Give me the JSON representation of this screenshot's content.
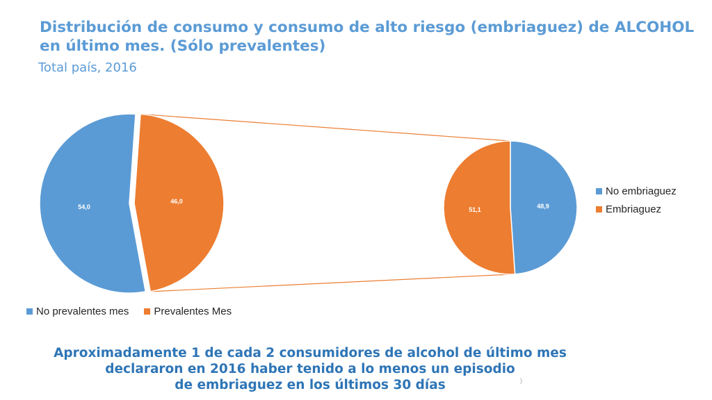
{
  "header": {
    "title_line1": "Distribución de consumo y consumo de alto riesgo (embriaguez) de ALCOHOL",
    "title_line2": "en último mes. (Sólo prevalentes)",
    "subtitle": "Total país, 2016"
  },
  "colors": {
    "blue": "#5B9BD5",
    "orange": "#ED7D31",
    "title": "#5B9BD5",
    "conclusion": "#2E75B6"
  },
  "chart_data": [
    {
      "type": "pie",
      "categories": [
        "No prevalentes mes",
        "Prevalentes Mes"
      ],
      "values": [
        54.0,
        46.0
      ],
      "labels": [
        "54,0",
        "46,0"
      ],
      "legend": "bottom"
    },
    {
      "type": "pie",
      "categories": [
        "No embriaguez",
        "Embriaguez"
      ],
      "values": [
        48.9,
        51.1
      ],
      "labels": [
        "48,9",
        "51,1"
      ],
      "legend": "right"
    }
  ],
  "legend_left": [
    "No prevalentes mes",
    "Prevalentes Mes"
  ],
  "legend_right": [
    "No embriaguez",
    "Embriaguez"
  ],
  "conclusion": {
    "line1": "Aproximadamente 1 de cada 2 consumidores de alcohol de último mes",
    "line2": "declararon en 2016 haber tenido a lo menos un episodio",
    "line3": "de embriaguez en los últimos 30 días"
  },
  "marker": ")"
}
